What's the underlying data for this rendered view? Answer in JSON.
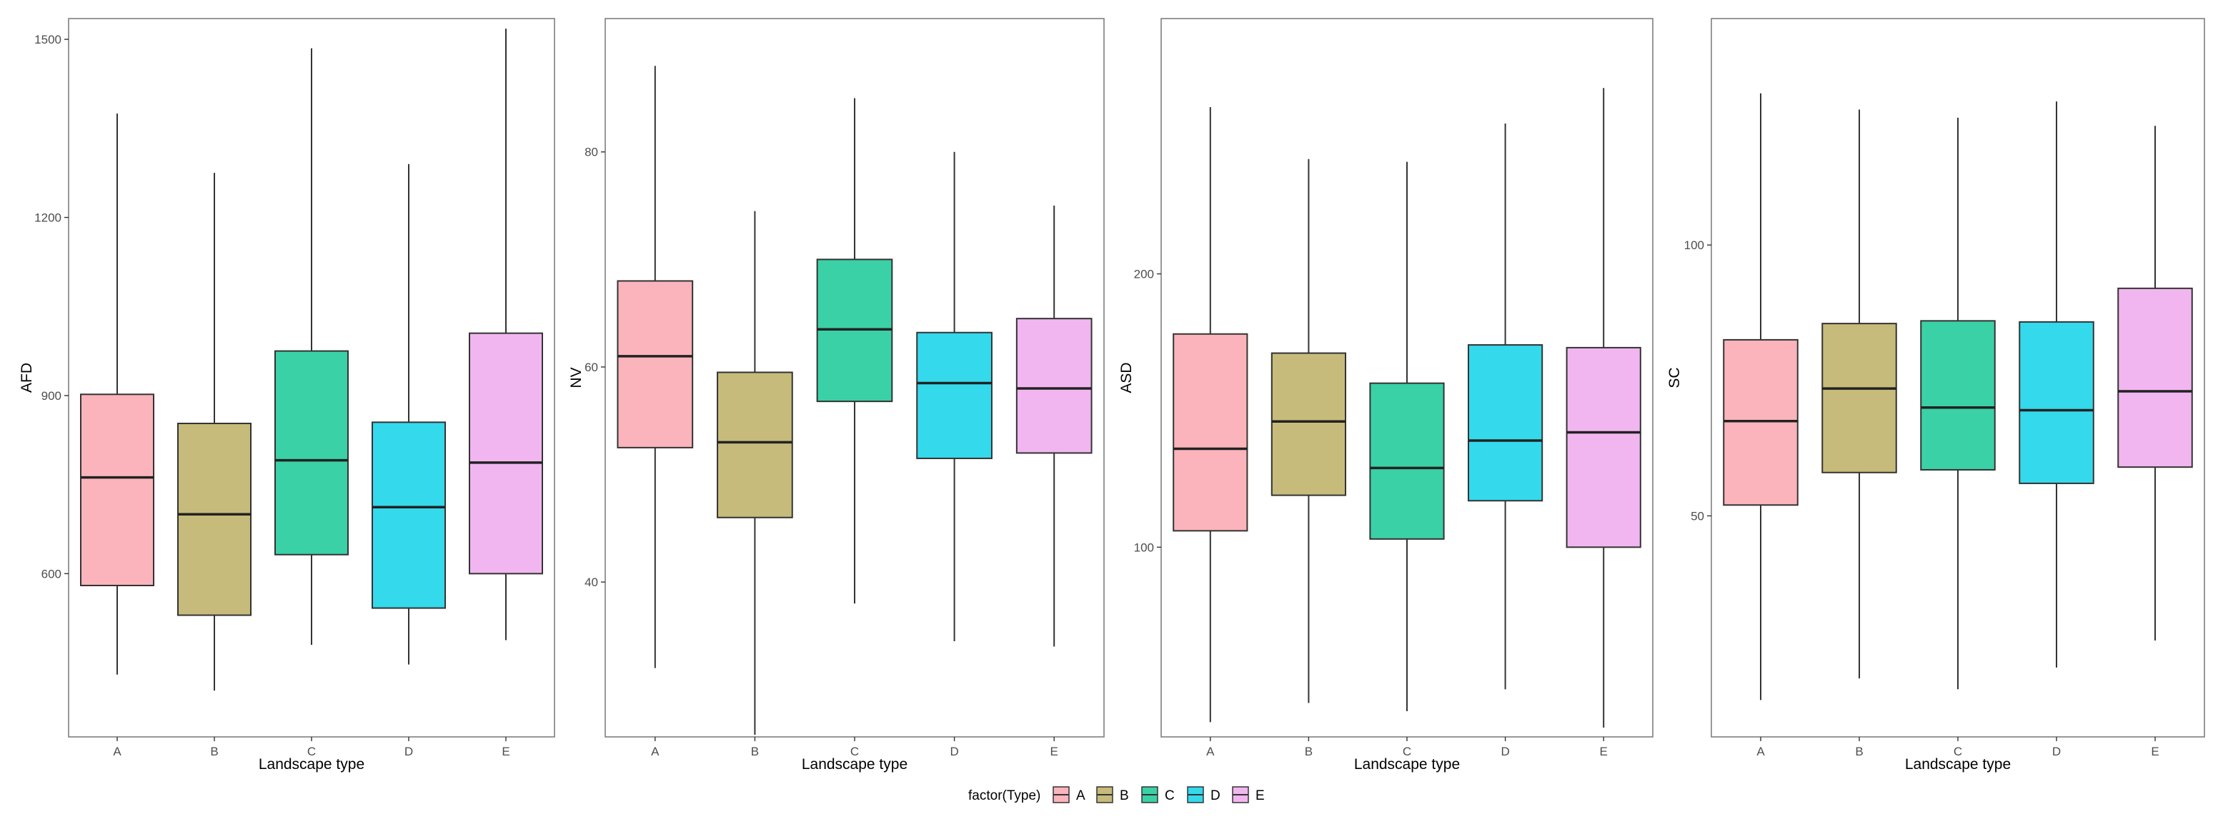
{
  "legend": {
    "title": "factor(Type)",
    "entries": [
      "A",
      "B",
      "C",
      "D",
      "E"
    ]
  },
  "colors": {
    "A": "#fbb4bb",
    "B": "#c6bb7a",
    "C": "#3ad1a6",
    "D": "#34d9ec",
    "E": "#f1b6ef",
    "median": "#222222",
    "whisker": "#333333",
    "frame": "#7f7f7f"
  },
  "chart_data": [
    {
      "type": "boxplot",
      "xlabel": "Landscape type",
      "ylabel": "AFD",
      "categories": [
        "A",
        "B",
        "C",
        "D",
        "E"
      ],
      "ylim": [
        325,
        1535
      ],
      "yticks": [
        600,
        900,
        1200,
        1500
      ],
      "grid": false,
      "boxes": [
        {
          "min": 430,
          "q1": 580,
          "median": 762,
          "q3": 902,
          "max": 1375
        },
        {
          "min": 403,
          "q1": 530,
          "median": 700,
          "q3": 853,
          "max": 1275
        },
        {
          "min": 480,
          "q1": 632,
          "median": 791,
          "q3": 975,
          "max": 1485
        },
        {
          "min": 447,
          "q1": 542,
          "median": 712,
          "q3": 855,
          "max": 1290
        },
        {
          "min": 488,
          "q1": 600,
          "median": 787,
          "q3": 1005,
          "max": 1518
        }
      ]
    },
    {
      "type": "boxplot",
      "xlabel": "Landscape type",
      "ylabel": "NV",
      "categories": [
        "A",
        "B",
        "C",
        "D",
        "E"
      ],
      "ylim": [
        25.6,
        92.4
      ],
      "yticks": [
        40,
        60,
        80
      ],
      "grid": false,
      "boxes": [
        {
          "min": 32,
          "q1": 52.5,
          "median": 61,
          "q3": 68,
          "max": 88
        },
        {
          "min": 25.8,
          "q1": 46,
          "median": 53,
          "q3": 59.5,
          "max": 74.5
        },
        {
          "min": 38,
          "q1": 56.8,
          "median": 63.5,
          "q3": 70,
          "max": 85
        },
        {
          "min": 34.5,
          "q1": 51.5,
          "median": 58.5,
          "q3": 63.2,
          "max": 80
        },
        {
          "min": 34,
          "q1": 52,
          "median": 58,
          "q3": 64.5,
          "max": 75
        }
      ]
    },
    {
      "type": "boxplot",
      "xlabel": "Landscape type",
      "ylabel": "ASD",
      "categories": [
        "A",
        "B",
        "C",
        "D",
        "E"
      ],
      "ylim": [
        30.6,
        293.4
      ],
      "yticks": [
        100,
        200
      ],
      "grid": false,
      "boxes": [
        {
          "min": 36,
          "q1": 106,
          "median": 136,
          "q3": 178,
          "max": 261
        },
        {
          "min": 43,
          "q1": 119,
          "median": 146,
          "q3": 171,
          "max": 242
        },
        {
          "min": 40,
          "q1": 103,
          "median": 129,
          "q3": 160,
          "max": 241
        },
        {
          "min": 48,
          "q1": 117,
          "median": 139,
          "q3": 174,
          "max": 255
        },
        {
          "min": 34,
          "q1": 100,
          "median": 142,
          "q3": 173,
          "max": 268
        }
      ]
    },
    {
      "type": "boxplot",
      "xlabel": "Landscape type",
      "ylabel": "SC",
      "categories": [
        "A",
        "B",
        "C",
        "D",
        "E"
      ],
      "ylim": [
        9.2,
        141.8
      ],
      "yticks": [
        50,
        100
      ],
      "grid": false,
      "boxes": [
        {
          "min": 16,
          "q1": 52,
          "median": 67.5,
          "q3": 82.5,
          "max": 128
        },
        {
          "min": 20,
          "q1": 58,
          "median": 73.5,
          "q3": 85.5,
          "max": 125
        },
        {
          "min": 18,
          "q1": 58.5,
          "median": 70,
          "q3": 86,
          "max": 123.5
        },
        {
          "min": 22,
          "q1": 56,
          "median": 69.5,
          "q3": 85.8,
          "max": 126.5
        },
        {
          "min": 27,
          "q1": 59,
          "median": 73,
          "q3": 92,
          "max": 122
        }
      ]
    }
  ]
}
